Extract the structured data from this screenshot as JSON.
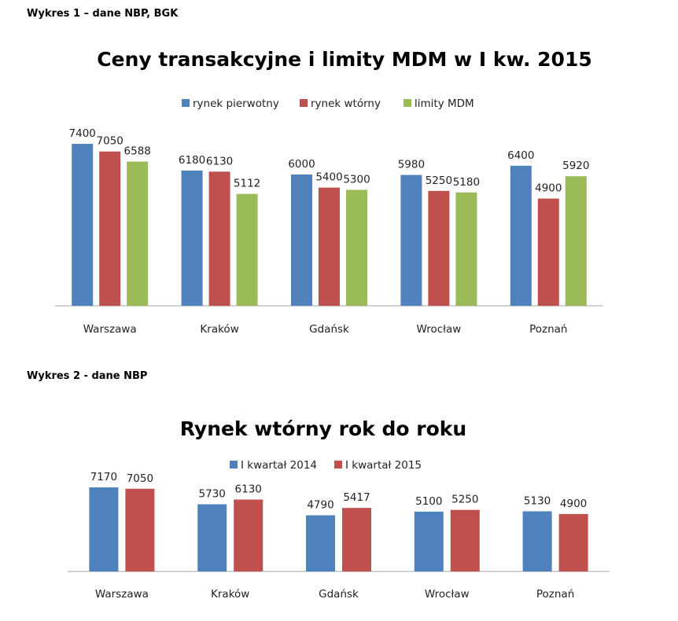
{
  "captions": {
    "chart1": "Wykres 1 – dane NBP, BGK",
    "chart2": "Wykres 2 - dane NBP"
  },
  "colors": {
    "blue": "#4f81bd",
    "red": "#c0504d",
    "green": "#9bbb59",
    "axis": "#a6a6a6"
  },
  "chart_data": [
    {
      "type": "bar",
      "title": "Ceny transakcyjne i limity MDM w I kw. 2015",
      "categories": [
        "Warszawa",
        "Kraków",
        "Gdańsk",
        "Wrocław",
        "Poznań"
      ],
      "series": [
        {
          "name": "rynek pierwotny",
          "values": [
            7400,
            6180,
            6000,
            5980,
            6400
          ]
        },
        {
          "name": "rynek wtórny",
          "values": [
            7050,
            6130,
            5400,
            5250,
            4900
          ]
        },
        {
          "name": "limity MDM",
          "values": [
            6588,
            5112,
            5300,
            5180,
            5920
          ]
        }
      ],
      "legend": "top",
      "grid": false
    },
    {
      "type": "bar",
      "title": "Rynek wtórny rok do roku",
      "categories": [
        "Warszawa",
        "Kraków",
        "Gdańsk",
        "Wrocław",
        "Poznań"
      ],
      "series": [
        {
          "name": "I kwartał 2014",
          "values": [
            7170,
            5730,
            4790,
            5100,
            5130
          ]
        },
        {
          "name": "I kwartał 2015",
          "values": [
            7050,
            6130,
            5417,
            5250,
            4900
          ]
        }
      ],
      "legend": "top",
      "grid": false
    }
  ]
}
